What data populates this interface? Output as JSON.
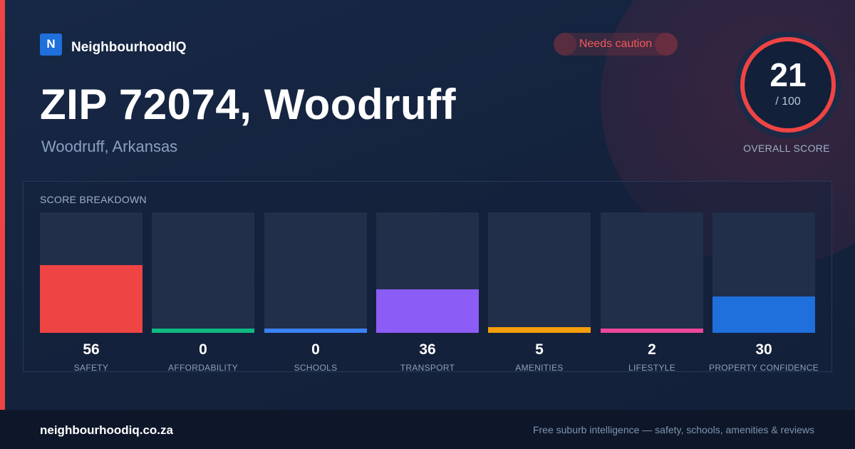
{
  "brand": {
    "logo_letter": "N",
    "name": "NeighbourhoodIQ",
    "accent_color": "#1f6fdc"
  },
  "badge": {
    "label": "Needs caution",
    "color": "#ef4444"
  },
  "header": {
    "title": "ZIP 72074, Woodruff",
    "subtitle": "Woodruff, Arkansas"
  },
  "overall_score": {
    "value": "21",
    "max_label": "/ 100",
    "score": 21,
    "max": 100,
    "label": "OVERALL SCORE",
    "ring_color": "#ef4444"
  },
  "breakdown": {
    "title": "SCORE BREAKDOWN"
  },
  "chart_data": {
    "type": "bar",
    "title": "SCORE BREAKDOWN",
    "ylim": [
      0,
      100
    ],
    "categories": [
      "SAFETY",
      "AFFORDABILITY",
      "SCHOOLS",
      "TRANSPORT",
      "AMENITIES",
      "LIFESTYLE",
      "PROPERTY CONFIDENCE"
    ],
    "values": [
      56,
      0,
      0,
      36,
      5,
      2,
      30
    ],
    "colors": [
      "#ef4444",
      "#10b981",
      "#3b82f6",
      "#8b5cf6",
      "#f59e0b",
      "#ec4899",
      "#1f6fdc"
    ]
  },
  "footer": {
    "domain": "neighbourhoodiq.co.za",
    "tagline": "Free suburb intelligence — safety, schools, amenities & reviews"
  }
}
